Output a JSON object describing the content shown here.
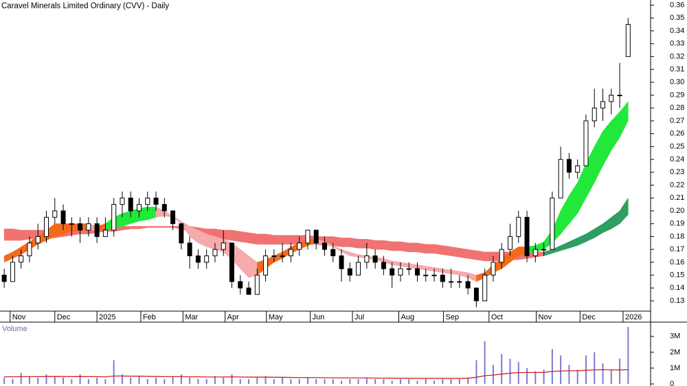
{
  "chart_data": {
    "type": "candlestick",
    "title": "Caravel Minerals Limited Ordinary (CVV) - Daily",
    "xlim": [
      -0.5,
      76.5
    ],
    "xticks": [
      {
        "value": 0.7,
        "label": "Nov"
      },
      {
        "value": 6.0,
        "label": "Dec"
      },
      {
        "value": 11.0,
        "label": "2025"
      },
      {
        "value": 16.2,
        "label": "Feb"
      },
      {
        "value": 21.2,
        "label": "Mar"
      },
      {
        "value": 26.2,
        "label": "Apr"
      },
      {
        "value": 31.1,
        "label": "May"
      },
      {
        "value": 36.3,
        "label": "Jun"
      },
      {
        "value": 41.3,
        "label": "Jul"
      },
      {
        "value": 46.8,
        "label": "Aug"
      },
      {
        "value": 52.1,
        "label": "Sep"
      },
      {
        "value": 57.5,
        "label": "Oct"
      },
      {
        "value": 63.1,
        "label": "Nov"
      },
      {
        "value": 68.3,
        "label": "Dec"
      },
      {
        "value": 73.4,
        "label": "2026"
      }
    ],
    "ylim": [
      0.122,
      0.364
    ],
    "yticks": [
      0.13,
      0.14,
      0.15,
      0.16,
      0.17,
      0.18,
      0.19,
      {
        "value": 0.2,
        "label": "0.20"
      },
      0.21,
      0.22,
      0.23,
      0.24,
      0.25,
      0.26,
      0.27,
      0.28,
      0.29,
      {
        "value": 0.3,
        "label": "0.30"
      },
      0.31,
      0.32,
      0.33,
      0.34,
      0.35,
      0.36
    ],
    "candle_colors": {
      "up": "#ffffff",
      "down": "#000000",
      "outline": "#000000"
    },
    "ohlc": [
      [
        0.15,
        0.155,
        0.14,
        0.145
      ],
      [
        0.145,
        0.165,
        0.145,
        0.16
      ],
      [
        0.16,
        0.17,
        0.155,
        0.165
      ],
      [
        0.165,
        0.18,
        0.16,
        0.175
      ],
      [
        0.175,
        0.19,
        0.17,
        0.18
      ],
      [
        0.18,
        0.2,
        0.175,
        0.195
      ],
      [
        0.195,
        0.21,
        0.19,
        0.2
      ],
      [
        0.2,
        0.205,
        0.185,
        0.19
      ],
      [
        0.19,
        0.195,
        0.18,
        0.19
      ],
      [
        0.19,
        0.195,
        0.175,
        0.185
      ],
      [
        0.185,
        0.195,
        0.18,
        0.19
      ],
      [
        0.19,
        0.195,
        0.175,
        0.18
      ],
      [
        0.18,
        0.195,
        0.18,
        0.185
      ],
      [
        0.185,
        0.21,
        0.18,
        0.205
      ],
      [
        0.205,
        0.215,
        0.195,
        0.21
      ],
      [
        0.21,
        0.215,
        0.195,
        0.2
      ],
      [
        0.2,
        0.21,
        0.195,
        0.205
      ],
      [
        0.205,
        0.215,
        0.2,
        0.21
      ],
      [
        0.21,
        0.215,
        0.2,
        0.205
      ],
      [
        0.205,
        0.21,
        0.195,
        0.2
      ],
      [
        0.2,
        0.2,
        0.185,
        0.19
      ],
      [
        0.19,
        0.19,
        0.17,
        0.175
      ],
      [
        0.175,
        0.18,
        0.155,
        0.165
      ],
      [
        0.165,
        0.17,
        0.155,
        0.16
      ],
      [
        0.16,
        0.17,
        0.155,
        0.165
      ],
      [
        0.165,
        0.175,
        0.16,
        0.17
      ],
      [
        0.17,
        0.185,
        0.165,
        0.175
      ],
      [
        0.175,
        0.175,
        0.14,
        0.145
      ],
      [
        0.145,
        0.15,
        0.135,
        0.14
      ],
      [
        0.14,
        0.145,
        0.135,
        0.135
      ],
      [
        0.135,
        0.155,
        0.135,
        0.15
      ],
      [
        0.15,
        0.17,
        0.145,
        0.165
      ],
      [
        0.165,
        0.17,
        0.16,
        0.165
      ],
      [
        0.165,
        0.175,
        0.16,
        0.165
      ],
      [
        0.165,
        0.175,
        0.16,
        0.17
      ],
      [
        0.17,
        0.18,
        0.165,
        0.175
      ],
      [
        0.175,
        0.185,
        0.17,
        0.185
      ],
      [
        0.185,
        0.185,
        0.17,
        0.175
      ],
      [
        0.175,
        0.18,
        0.165,
        0.17
      ],
      [
        0.17,
        0.175,
        0.16,
        0.165
      ],
      [
        0.165,
        0.17,
        0.145,
        0.155
      ],
      [
        0.155,
        0.16,
        0.145,
        0.15
      ],
      [
        0.15,
        0.165,
        0.15,
        0.16
      ],
      [
        0.16,
        0.175,
        0.155,
        0.165
      ],
      [
        0.165,
        0.17,
        0.155,
        0.16
      ],
      [
        0.16,
        0.165,
        0.15,
        0.155
      ],
      [
        0.155,
        0.16,
        0.14,
        0.15
      ],
      [
        0.15,
        0.16,
        0.145,
        0.155
      ],
      [
        0.155,
        0.16,
        0.15,
        0.155
      ],
      [
        0.155,
        0.16,
        0.145,
        0.15
      ],
      [
        0.15,
        0.155,
        0.145,
        0.15
      ],
      [
        0.15,
        0.155,
        0.145,
        0.15
      ],
      [
        0.15,
        0.155,
        0.14,
        0.145
      ],
      [
        0.145,
        0.155,
        0.14,
        0.145
      ],
      [
        0.145,
        0.15,
        0.14,
        0.145
      ],
      [
        0.145,
        0.15,
        0.135,
        0.14
      ],
      [
        0.14,
        0.14,
        0.125,
        0.13
      ],
      [
        0.13,
        0.155,
        0.13,
        0.15
      ],
      [
        0.15,
        0.165,
        0.145,
        0.16
      ],
      [
        0.16,
        0.175,
        0.155,
        0.17
      ],
      [
        0.17,
        0.19,
        0.165,
        0.18
      ],
      [
        0.18,
        0.2,
        0.175,
        0.195
      ],
      [
        0.195,
        0.2,
        0.16,
        0.165
      ],
      [
        0.165,
        0.175,
        0.16,
        0.17
      ],
      [
        0.17,
        0.175,
        0.165,
        0.17
      ],
      [
        0.17,
        0.215,
        0.17,
        0.21
      ],
      [
        0.21,
        0.25,
        0.21,
        0.24
      ],
      [
        0.24,
        0.245,
        0.225,
        0.23
      ],
      [
        0.23,
        0.24,
        0.225,
        0.235
      ],
      [
        0.235,
        0.275,
        0.235,
        0.27
      ],
      [
        0.27,
        0.295,
        0.265,
        0.28
      ],
      [
        0.28,
        0.295,
        0.27,
        0.285
      ],
      [
        0.285,
        0.295,
        0.275,
        0.29
      ],
      [
        0.29,
        0.315,
        0.28,
        0.29
      ],
      [
        0.32,
        0.35,
        0.32,
        0.345
      ]
    ],
    "short_ribbon": {
      "colors": {
        "rising": "#22e83c",
        "rising_below": "#f26a1c",
        "falling": "#f5abab"
      },
      "upper": [
        0.165,
        0.168,
        0.172,
        0.176,
        0.18,
        0.185,
        0.19,
        0.19,
        0.19,
        0.19,
        0.19,
        0.188,
        0.19,
        0.195,
        0.198,
        0.2,
        0.202,
        0.203,
        0.203,
        0.2,
        0.196,
        0.192,
        0.188,
        0.185,
        0.182,
        0.18,
        0.178,
        0.175,
        0.17,
        0.165,
        0.16,
        0.162,
        0.165,
        0.168,
        0.172,
        0.175,
        0.178,
        0.178,
        0.176,
        0.173,
        0.17,
        0.168,
        0.166,
        0.165,
        0.164,
        0.163,
        0.161,
        0.16,
        0.159,
        0.158,
        0.157,
        0.156,
        0.155,
        0.154,
        0.153,
        0.152,
        0.15,
        0.152,
        0.158,
        0.163,
        0.168,
        0.172,
        0.172,
        0.173,
        0.176,
        0.185,
        0.2,
        0.212,
        0.222,
        0.237,
        0.25,
        0.262,
        0.27,
        0.277,
        0.285
      ],
      "lower": [
        0.16,
        0.163,
        0.166,
        0.17,
        0.174,
        0.177,
        0.18,
        0.182,
        0.184,
        0.185,
        0.185,
        0.185,
        0.185,
        0.187,
        0.188,
        0.19,
        0.192,
        0.193,
        0.195,
        0.196,
        0.195,
        0.19,
        0.18,
        0.175,
        0.172,
        0.17,
        0.168,
        0.162,
        0.155,
        0.148,
        0.15,
        0.155,
        0.16,
        0.163,
        0.167,
        0.17,
        0.173,
        0.175,
        0.174,
        0.172,
        0.168,
        0.165,
        0.164,
        0.163,
        0.162,
        0.16,
        0.158,
        0.157,
        0.156,
        0.155,
        0.154,
        0.153,
        0.152,
        0.151,
        0.15,
        0.148,
        0.145,
        0.148,
        0.152,
        0.155,
        0.16,
        0.165,
        0.167,
        0.168,
        0.17,
        0.175,
        0.182,
        0.19,
        0.198,
        0.21,
        0.222,
        0.235,
        0.247,
        0.257,
        0.27
      ]
    },
    "long_ribbon": {
      "colors": {
        "falling": "#f07272",
        "rising": "#2f9e63"
      },
      "upper": [
        0.186,
        0.186,
        0.185,
        0.185,
        0.185,
        0.185,
        0.185,
        0.185,
        0.186,
        0.186,
        0.186,
        0.186,
        0.187,
        0.187,
        0.188,
        0.188,
        0.188,
        0.188,
        0.188,
        0.188,
        0.188,
        0.188,
        0.188,
        0.187,
        0.186,
        0.186,
        0.185,
        0.185,
        0.184,
        0.183,
        0.182,
        0.182,
        0.181,
        0.181,
        0.181,
        0.181,
        0.181,
        0.18,
        0.18,
        0.18,
        0.179,
        0.179,
        0.178,
        0.178,
        0.177,
        0.177,
        0.176,
        0.176,
        0.175,
        0.175,
        0.174,
        0.174,
        0.173,
        0.172,
        0.171,
        0.17,
        0.169,
        0.168,
        0.168,
        0.168,
        0.168,
        0.168,
        0.168,
        0.168,
        0.168,
        0.17,
        0.173,
        0.176,
        0.179,
        0.182,
        0.186,
        0.19,
        0.195,
        0.2,
        0.21
      ],
      "lower": [
        0.177,
        0.177,
        0.177,
        0.178,
        0.178,
        0.179,
        0.179,
        0.18,
        0.181,
        0.182,
        0.182,
        0.183,
        0.184,
        0.184,
        0.185,
        0.186,
        0.186,
        0.187,
        0.187,
        0.187,
        0.187,
        0.186,
        0.184,
        0.182,
        0.18,
        0.179,
        0.178,
        0.177,
        0.176,
        0.175,
        0.174,
        0.174,
        0.174,
        0.174,
        0.174,
        0.174,
        0.174,
        0.174,
        0.173,
        0.173,
        0.172,
        0.172,
        0.171,
        0.171,
        0.17,
        0.17,
        0.169,
        0.169,
        0.168,
        0.168,
        0.167,
        0.167,
        0.166,
        0.165,
        0.164,
        0.163,
        0.162,
        0.161,
        0.161,
        0.161,
        0.162,
        0.162,
        0.163,
        0.164,
        0.165,
        0.167,
        0.169,
        0.171,
        0.173,
        0.176,
        0.179,
        0.183,
        0.186,
        0.19,
        0.197
      ]
    },
    "volume": {
      "label": "Volume",
      "color": "#7b7bd0",
      "ma_color": "#d42020",
      "ylim": [
        0,
        3600000
      ],
      "yticks": [
        0,
        {
          "value": 1000000,
          "label": "1M"
        },
        {
          "value": 2000000,
          "label": "2M"
        },
        {
          "value": 3000000,
          "label": "3M"
        }
      ],
      "values": [
        400000,
        300000,
        700000,
        500000,
        400000,
        600000,
        500000,
        400000,
        300000,
        600000,
        300000,
        400000,
        300000,
        1500000,
        600000,
        400000,
        500000,
        300000,
        400000,
        300000,
        500000,
        600000,
        400000,
        300000,
        300000,
        500000,
        400000,
        600000,
        300000,
        300000,
        400000,
        500000,
        300000,
        400000,
        300000,
        300000,
        400000,
        300000,
        300000,
        300000,
        200000,
        300000,
        300000,
        400000,
        300000,
        300000,
        200000,
        300000,
        300000,
        200000,
        300000,
        200000,
        300000,
        300000,
        300000,
        400000,
        1500000,
        2700000,
        1200000,
        1900000,
        1600000,
        1400000,
        1000000,
        800000,
        900000,
        2200000,
        1800000,
        1200000,
        900000,
        1800000,
        2000000,
        1300000,
        900000,
        1600000,
        3600000
      ],
      "ma": [
        450000,
        450000,
        460000,
        460000,
        460000,
        470000,
        470000,
        470000,
        460000,
        470000,
        460000,
        460000,
        450000,
        500000,
        500000,
        490000,
        490000,
        480000,
        470000,
        460000,
        460000,
        460000,
        450000,
        450000,
        440000,
        440000,
        440000,
        450000,
        440000,
        430000,
        430000,
        430000,
        420000,
        420000,
        410000,
        400000,
        400000,
        400000,
        390000,
        390000,
        380000,
        380000,
        380000,
        380000,
        370000,
        370000,
        360000,
        360000,
        360000,
        350000,
        350000,
        350000,
        350000,
        350000,
        350000,
        360000,
        420000,
        520000,
        560000,
        620000,
        680000,
        710000,
        720000,
        720000,
        730000,
        790000,
        820000,
        830000,
        830000,
        860000,
        890000,
        900000,
        890000,
        880000,
        900000
      ]
    }
  }
}
